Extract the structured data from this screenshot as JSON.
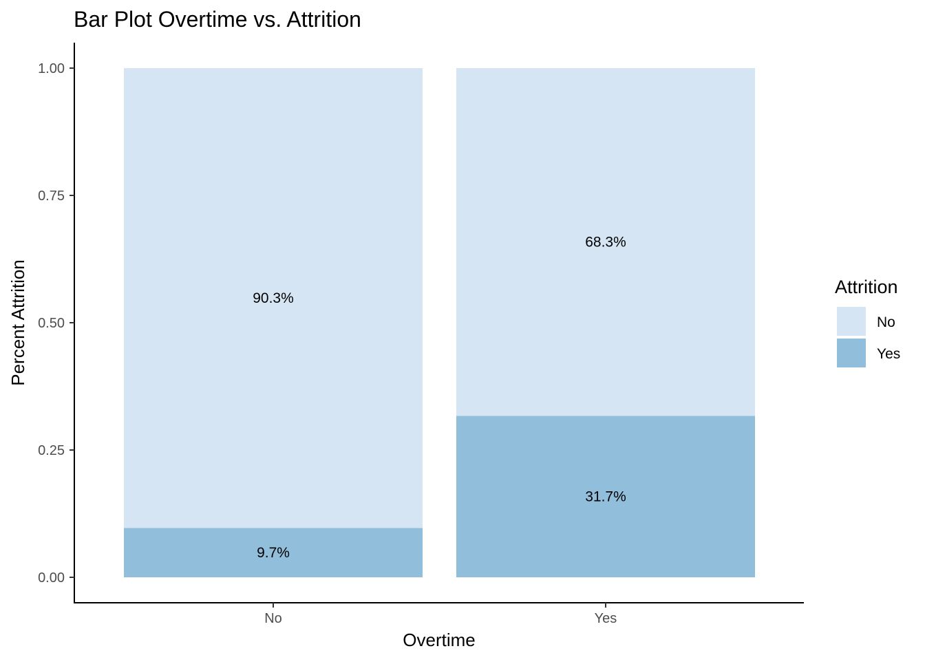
{
  "chart_data": {
    "type": "bar",
    "stacked": true,
    "title": "Bar Plot Overtime vs. Attrition",
    "xlabel": "Overtime",
    "ylabel": "Percent Attrition",
    "categories": [
      "No",
      "Yes"
    ],
    "ylim": [
      0,
      1
    ],
    "yticks": [
      "0.00",
      "0.25",
      "0.50",
      "0.75",
      "1.00"
    ],
    "grid": false,
    "legend": {
      "title": "Attrition",
      "position": "right"
    },
    "series": [
      {
        "name": "No",
        "color": "#d6e5f4",
        "values": [
          0.903,
          0.683
        ],
        "labels": [
          "90.3%",
          "68.3%"
        ]
      },
      {
        "name": "Yes",
        "color": "#91bedb",
        "values": [
          0.097,
          0.317
        ],
        "labels": [
          "9.7%",
          "31.7%"
        ]
      }
    ]
  }
}
